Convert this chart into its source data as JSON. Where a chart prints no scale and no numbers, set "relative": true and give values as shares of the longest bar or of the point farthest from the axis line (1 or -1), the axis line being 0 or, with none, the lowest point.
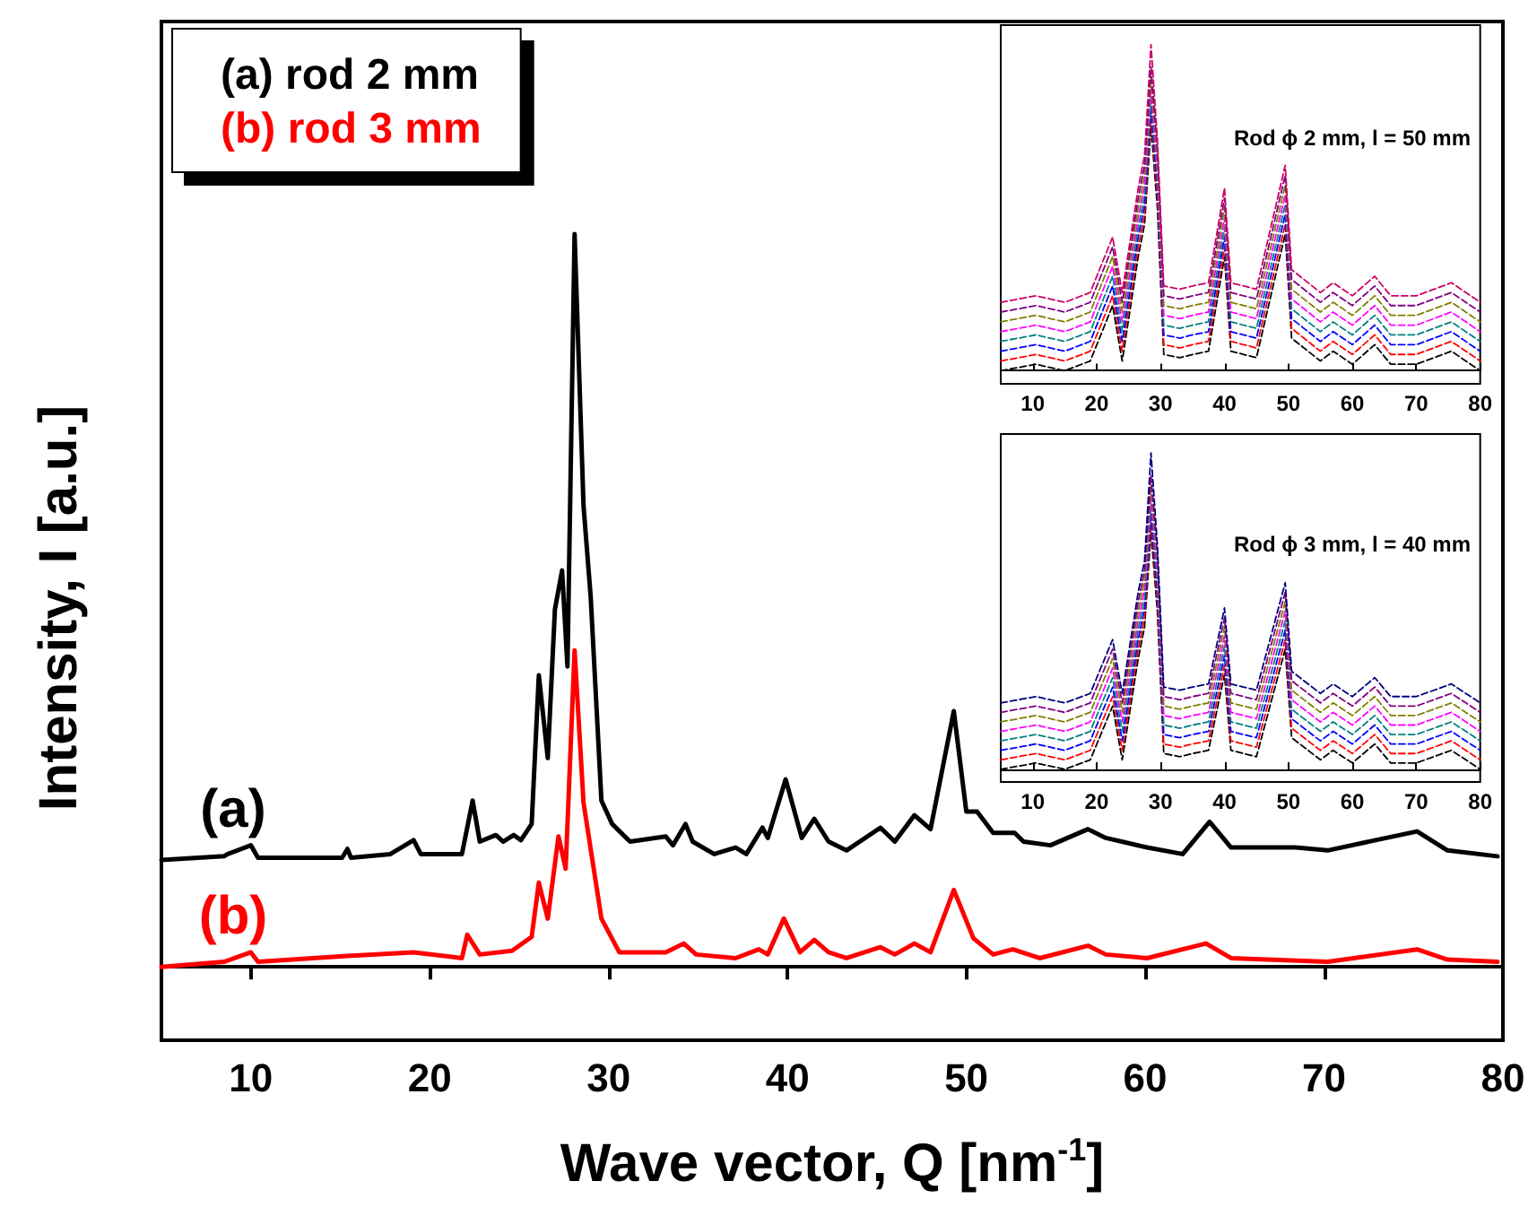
{
  "chart_data": [
    {
      "type": "line",
      "xlabel": "Wave vector, Q [nm$^{-1}$]",
      "ylabel": "Intensity, I [a.u.]",
      "relative": true,
      "xlim": [
        5,
        80
      ],
      "xticks": [
        10,
        20,
        30,
        40,
        50,
        60,
        70,
        80
      ],
      "legend": "top left",
      "grid": false,
      "marker": "none",
      "line_style": "solid",
      "annotations": [
        "(a)",
        "(b)"
      ],
      "series": [
        {
          "name": "(a) rod 2 mm",
          "color": "#000000",
          "x": [
            5,
            8.5,
            8.7,
            10.0,
            10.4,
            15.1,
            15.4,
            15.6,
            17.8,
            19.1,
            19.5,
            21.8,
            22.4,
            22.8,
            23.7,
            24.1,
            24.7,
            25.1,
            25.7,
            26.1,
            26.6,
            27.0,
            27.4,
            27.7,
            28.1,
            28.6,
            29.0,
            29.6,
            30.2,
            31.2,
            33.2,
            33.6,
            34.3,
            34.7,
            35.9,
            37.1,
            37.7,
            38.6,
            38.9,
            39.9,
            40.8,
            41.5,
            42.3,
            43.3,
            45.2,
            46.0,
            47.1,
            48.0,
            49.3,
            50.0,
            50.6,
            51.5,
            52.7,
            53.2,
            54.7,
            56.8,
            57.8,
            60.1,
            62.1,
            63.6,
            64.8,
            66.1,
            68.4,
            70.2,
            75.2,
            76.9,
            79.7
          ],
          "values": [
            0.146,
            0.151,
            0.154,
            0.166,
            0.149,
            0.149,
            0.161,
            0.149,
            0.154,
            0.173,
            0.154,
            0.154,
            0.227,
            0.171,
            0.18,
            0.171,
            0.18,
            0.173,
            0.195,
            0.398,
            0.285,
            0.488,
            0.541,
            0.41,
            1,
            0.629,
            0.505,
            0.227,
            0.195,
            0.171,
            0.178,
            0.166,
            0.195,
            0.171,
            0.154,
            0.163,
            0.154,
            0.19,
            0.176,
            0.256,
            0.176,
            0.202,
            0.171,
            0.159,
            0.19,
            0.171,
            0.207,
            0.188,
            0.349,
            0.212,
            0.212,
            0.183,
            0.183,
            0.171,
            0.166,
            0.188,
            0.176,
            0.163,
            0.154,
            0.198,
            0.163,
            0.163,
            0.163,
            0.159,
            0.185,
            0.159,
            0.151
          ]
        },
        {
          "name": "(b) rod 3 mm",
          "color": "#ff0000",
          "x": [
            5,
            8.5,
            10.0,
            10.4,
            15.4,
            19.1,
            21.8,
            22.1,
            22.8,
            24.6,
            25.7,
            26.1,
            26.6,
            27.2,
            27.6,
            28.1,
            28.6,
            29.6,
            30.6,
            33.2,
            34.2,
            34.9,
            37.1,
            38.4,
            38.9,
            39.8,
            40.7,
            41.5,
            42.3,
            43.3,
            45.2,
            46.0,
            47.1,
            48.0,
            49.3,
            50.4,
            51.5,
            52.6,
            54.1,
            56.8,
            57.8,
            60.1,
            63.4,
            64.8,
            70.2,
            75.2,
            76.9,
            79.7
          ],
          "values": [
            0,
            0.007,
            0.02,
            0.007,
            0.015,
            0.02,
            0.012,
            0.044,
            0.017,
            0.022,
            0.041,
            0.115,
            0.066,
            0.178,
            0.134,
            0.432,
            0.224,
            0.066,
            0.02,
            0.02,
            0.032,
            0.017,
            0.012,
            0.024,
            0.017,
            0.066,
            0.02,
            0.037,
            0.02,
            0.012,
            0.027,
            0.017,
            0.032,
            0.02,
            0.105,
            0.039,
            0.017,
            0.024,
            0.012,
            0.029,
            0.017,
            0.012,
            0.032,
            0.012,
            0.007,
            0.024,
            0.01,
            0.007
          ]
        }
      ]
    },
    {
      "type": "line",
      "relative": true,
      "xlim": [
        5,
        80
      ],
      "xticks": [
        10,
        20,
        30,
        40,
        50,
        60,
        70,
        80
      ],
      "tick_labels": "x",
      "legend": false,
      "grid": false,
      "marker": "none",
      "line_style": "dashed",
      "annotations": [
        "Rod ϕ 2 mm, l = 50 mm"
      ],
      "x": [
        5,
        10.5,
        15,
        19,
        22.5,
        24,
        26.5,
        27.5,
        28.5,
        29.5,
        30.5,
        33,
        35,
        37.5,
        40,
        41,
        45,
        49.5,
        50.5,
        55,
        57,
        60,
        63.5,
        66,
        70,
        75.5,
        80
      ],
      "series": [
        {
          "color": "#000000",
          "values": [
            0,
            0.02,
            0,
            0.03,
            0.2,
            0.03,
            0.35,
            0.45,
            0.75,
            0.5,
            0.05,
            0.04,
            0.05,
            0.06,
            0.35,
            0.06,
            0.04,
            0.42,
            0.1,
            0.03,
            0.06,
            0.02,
            0.08,
            0.02,
            0.02,
            0.06,
            0
          ]
        },
        {
          "color": "#ff0000",
          "values": [
            0.03,
            0.05,
            0.03,
            0.06,
            0.23,
            0.06,
            0.38,
            0.48,
            0.78,
            0.53,
            0.08,
            0.07,
            0.08,
            0.09,
            0.38,
            0.09,
            0.07,
            0.45,
            0.13,
            0.06,
            0.09,
            0.05,
            0.11,
            0.05,
            0.05,
            0.09,
            0.03
          ]
        },
        {
          "color": "#0000ff",
          "values": [
            0.06,
            0.08,
            0.06,
            0.09,
            0.26,
            0.09,
            0.41,
            0.51,
            0.81,
            0.56,
            0.11,
            0.1,
            0.11,
            0.12,
            0.41,
            0.12,
            0.1,
            0.48,
            0.16,
            0.09,
            0.12,
            0.08,
            0.14,
            0.08,
            0.08,
            0.12,
            0.06
          ]
        },
        {
          "color": "#008080",
          "values": [
            0.09,
            0.11,
            0.09,
            0.12,
            0.29,
            0.12,
            0.44,
            0.54,
            0.84,
            0.59,
            0.14,
            0.13,
            0.14,
            0.15,
            0.44,
            0.15,
            0.13,
            0.51,
            0.19,
            0.12,
            0.15,
            0.11,
            0.17,
            0.11,
            0.11,
            0.15,
            0.09
          ]
        },
        {
          "color": "#ff00ff",
          "values": [
            0.12,
            0.14,
            0.12,
            0.15,
            0.32,
            0.15,
            0.47,
            0.57,
            0.87,
            0.62,
            0.17,
            0.16,
            0.17,
            0.18,
            0.47,
            0.18,
            0.16,
            0.54,
            0.22,
            0.15,
            0.18,
            0.14,
            0.2,
            0.14,
            0.14,
            0.18,
            0.12
          ]
        },
        {
          "color": "#808000",
          "values": [
            0.15,
            0.17,
            0.15,
            0.18,
            0.35,
            0.18,
            0.5,
            0.6,
            0.9,
            0.65,
            0.2,
            0.19,
            0.2,
            0.21,
            0.5,
            0.21,
            0.19,
            0.57,
            0.25,
            0.18,
            0.21,
            0.17,
            0.23,
            0.17,
            0.17,
            0.21,
            0.15
          ]
        },
        {
          "color": "#800080",
          "values": [
            0.18,
            0.2,
            0.18,
            0.21,
            0.38,
            0.21,
            0.53,
            0.63,
            0.93,
            0.68,
            0.23,
            0.22,
            0.23,
            0.24,
            0.53,
            0.24,
            0.22,
            0.6,
            0.28,
            0.21,
            0.24,
            0.2,
            0.26,
            0.2,
            0.2,
            0.24,
            0.18
          ]
        },
        {
          "color": "#cc0066",
          "values": [
            0.21,
            0.23,
            0.21,
            0.24,
            0.41,
            0.24,
            0.56,
            0.66,
            1,
            0.71,
            0.26,
            0.25,
            0.26,
            0.27,
            0.56,
            0.27,
            0.25,
            0.63,
            0.31,
            0.24,
            0.27,
            0.23,
            0.29,
            0.23,
            0.23,
            0.27,
            0.21
          ]
        }
      ]
    },
    {
      "type": "line",
      "relative": true,
      "xlim": [
        5,
        80
      ],
      "xticks": [
        10,
        20,
        30,
        40,
        50,
        60,
        70,
        80
      ],
      "tick_labels": "x",
      "legend": false,
      "grid": false,
      "marker": "none",
      "line_style": "dashed",
      "annotations": [
        "Rod ϕ 3 mm, l = 40 mm"
      ],
      "x": [
        5,
        10.5,
        15,
        19,
        22.5,
        24,
        26.5,
        27.5,
        28.5,
        29.5,
        30.5,
        33,
        35,
        37.5,
        40,
        41,
        45,
        49.5,
        50.5,
        55,
        57,
        60,
        63.5,
        66,
        70,
        75.5,
        80
      ],
      "series": [
        {
          "color": "#000000",
          "values": [
            0,
            0.02,
            0,
            0.03,
            0.2,
            0.03,
            0.35,
            0.45,
            0.75,
            0.5,
            0.05,
            0.04,
            0.05,
            0.06,
            0.3,
            0.06,
            0.04,
            0.38,
            0.1,
            0.03,
            0.06,
            0.02,
            0.08,
            0.02,
            0.02,
            0.06,
            0
          ]
        },
        {
          "color": "#ff0000",
          "values": [
            0.03,
            0.05,
            0.03,
            0.06,
            0.23,
            0.06,
            0.38,
            0.48,
            0.78,
            0.53,
            0.08,
            0.07,
            0.08,
            0.09,
            0.33,
            0.09,
            0.07,
            0.41,
            0.13,
            0.06,
            0.09,
            0.05,
            0.11,
            0.05,
            0.05,
            0.09,
            0.03
          ]
        },
        {
          "color": "#0000ff",
          "values": [
            0.06,
            0.08,
            0.06,
            0.09,
            0.26,
            0.09,
            0.41,
            0.51,
            0.81,
            0.56,
            0.11,
            0.1,
            0.11,
            0.12,
            0.36,
            0.12,
            0.1,
            0.44,
            0.16,
            0.09,
            0.12,
            0.08,
            0.14,
            0.08,
            0.08,
            0.12,
            0.06
          ]
        },
        {
          "color": "#008080",
          "values": [
            0.09,
            0.11,
            0.09,
            0.12,
            0.29,
            0.12,
            0.44,
            0.54,
            0.84,
            0.59,
            0.14,
            0.13,
            0.14,
            0.15,
            0.39,
            0.15,
            0.13,
            0.47,
            0.19,
            0.12,
            0.15,
            0.11,
            0.17,
            0.11,
            0.11,
            0.15,
            0.09
          ]
        },
        {
          "color": "#ff00ff",
          "values": [
            0.12,
            0.14,
            0.12,
            0.15,
            0.32,
            0.15,
            0.47,
            0.57,
            0.87,
            0.62,
            0.17,
            0.16,
            0.17,
            0.18,
            0.42,
            0.18,
            0.16,
            0.5,
            0.22,
            0.15,
            0.18,
            0.14,
            0.2,
            0.14,
            0.14,
            0.18,
            0.12
          ]
        },
        {
          "color": "#808000",
          "values": [
            0.15,
            0.17,
            0.15,
            0.18,
            0.35,
            0.18,
            0.5,
            0.6,
            0.9,
            0.65,
            0.2,
            0.19,
            0.2,
            0.21,
            0.45,
            0.21,
            0.19,
            0.53,
            0.25,
            0.18,
            0.21,
            0.17,
            0.23,
            0.17,
            0.17,
            0.21,
            0.15
          ]
        },
        {
          "color": "#800080",
          "values": [
            0.18,
            0.2,
            0.18,
            0.21,
            0.38,
            0.21,
            0.53,
            0.63,
            0.93,
            0.68,
            0.23,
            0.22,
            0.23,
            0.24,
            0.48,
            0.24,
            0.22,
            0.56,
            0.28,
            0.21,
            0.24,
            0.2,
            0.26,
            0.2,
            0.2,
            0.24,
            0.18
          ]
        },
        {
          "color": "#000080",
          "values": [
            0.21,
            0.23,
            0.21,
            0.24,
            0.41,
            0.24,
            0.56,
            0.66,
            1,
            0.71,
            0.26,
            0.25,
            0.26,
            0.27,
            0.51,
            0.27,
            0.25,
            0.59,
            0.31,
            0.24,
            0.27,
            0.23,
            0.29,
            0.23,
            0.23,
            0.27,
            0.21
          ]
        }
      ]
    }
  ]
}
